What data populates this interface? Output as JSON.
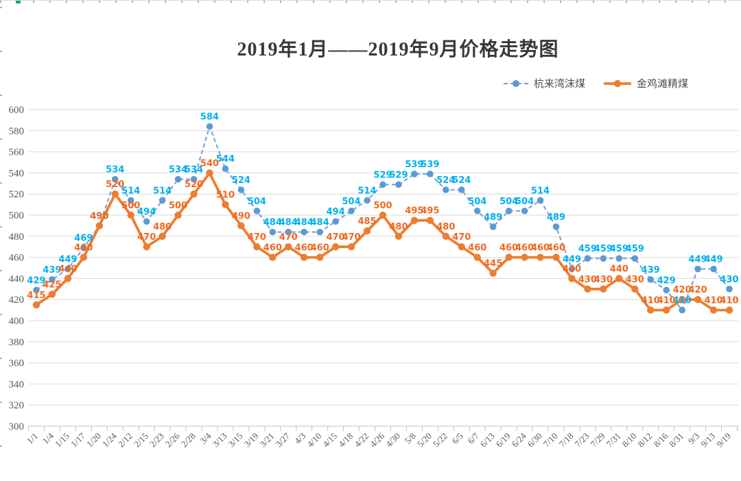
{
  "sheet": {
    "selection_indicator_color": "#21a366"
  },
  "chart_data": {
    "type": "line",
    "title": "2019年1月——2019年9月价格走势图",
    "xlabel": "",
    "ylabel": "",
    "ylim": [
      300,
      600
    ],
    "ytick_step": 20,
    "grid": true,
    "legend_position": "top-right",
    "data_labels": "above",
    "categories": [
      "1/1",
      "1/4",
      "1/15",
      "1/17",
      "1/20",
      "1/24",
      "2/12",
      "2/15",
      "2/23",
      "2/26",
      "2/28",
      "3/4",
      "3/13",
      "3/15",
      "3/19",
      "3/21",
      "3/27",
      "4/3",
      "4/10",
      "4/15",
      "4/18",
      "4/22",
      "4/26",
      "4/30",
      "5/8",
      "5/20",
      "5/22",
      "6/5",
      "6/7",
      "6/13",
      "6/19",
      "6/24",
      "6/30",
      "7/10",
      "7/18",
      "7/23",
      "7/29",
      "7/31",
      "8/10",
      "8/12",
      "8/16",
      "8/31",
      "9/3",
      "9/13",
      "9/19"
    ],
    "series": [
      {
        "name": "杭来湾沫煤",
        "line_style": "dashed",
        "color": "#5B9BD5",
        "line_color": "#7FA4D9",
        "label_color": "#00B0F0",
        "values": [
          429,
          439,
          449,
          469,
          490,
          534,
          514,
          494,
          514,
          534,
          534,
          584,
          544,
          524,
          504,
          484,
          484,
          484,
          484,
          494,
          504,
          514,
          529,
          529,
          539,
          539,
          524,
          524,
          504,
          489,
          504,
          504,
          514,
          489,
          449,
          459,
          459,
          459,
          459,
          439,
          429,
          410,
          449,
          449,
          430
        ]
      },
      {
        "name": "金鸡滩精煤",
        "line_style": "solid",
        "color": "#ED7D31",
        "line_color": "#ED7D31",
        "label_color": "#F0681F",
        "values": [
          415,
          425,
          440,
          460,
          490,
          520,
          500,
          470,
          480,
          500,
          520,
          540,
          510,
          490,
          470,
          460,
          470,
          460,
          460,
          470,
          470,
          485,
          500,
          480,
          495,
          495,
          480,
          470,
          460,
          445,
          460,
          460,
          460,
          460,
          440,
          430,
          430,
          440,
          430,
          410,
          410,
          420,
          420,
          410,
          410
        ]
      }
    ]
  }
}
